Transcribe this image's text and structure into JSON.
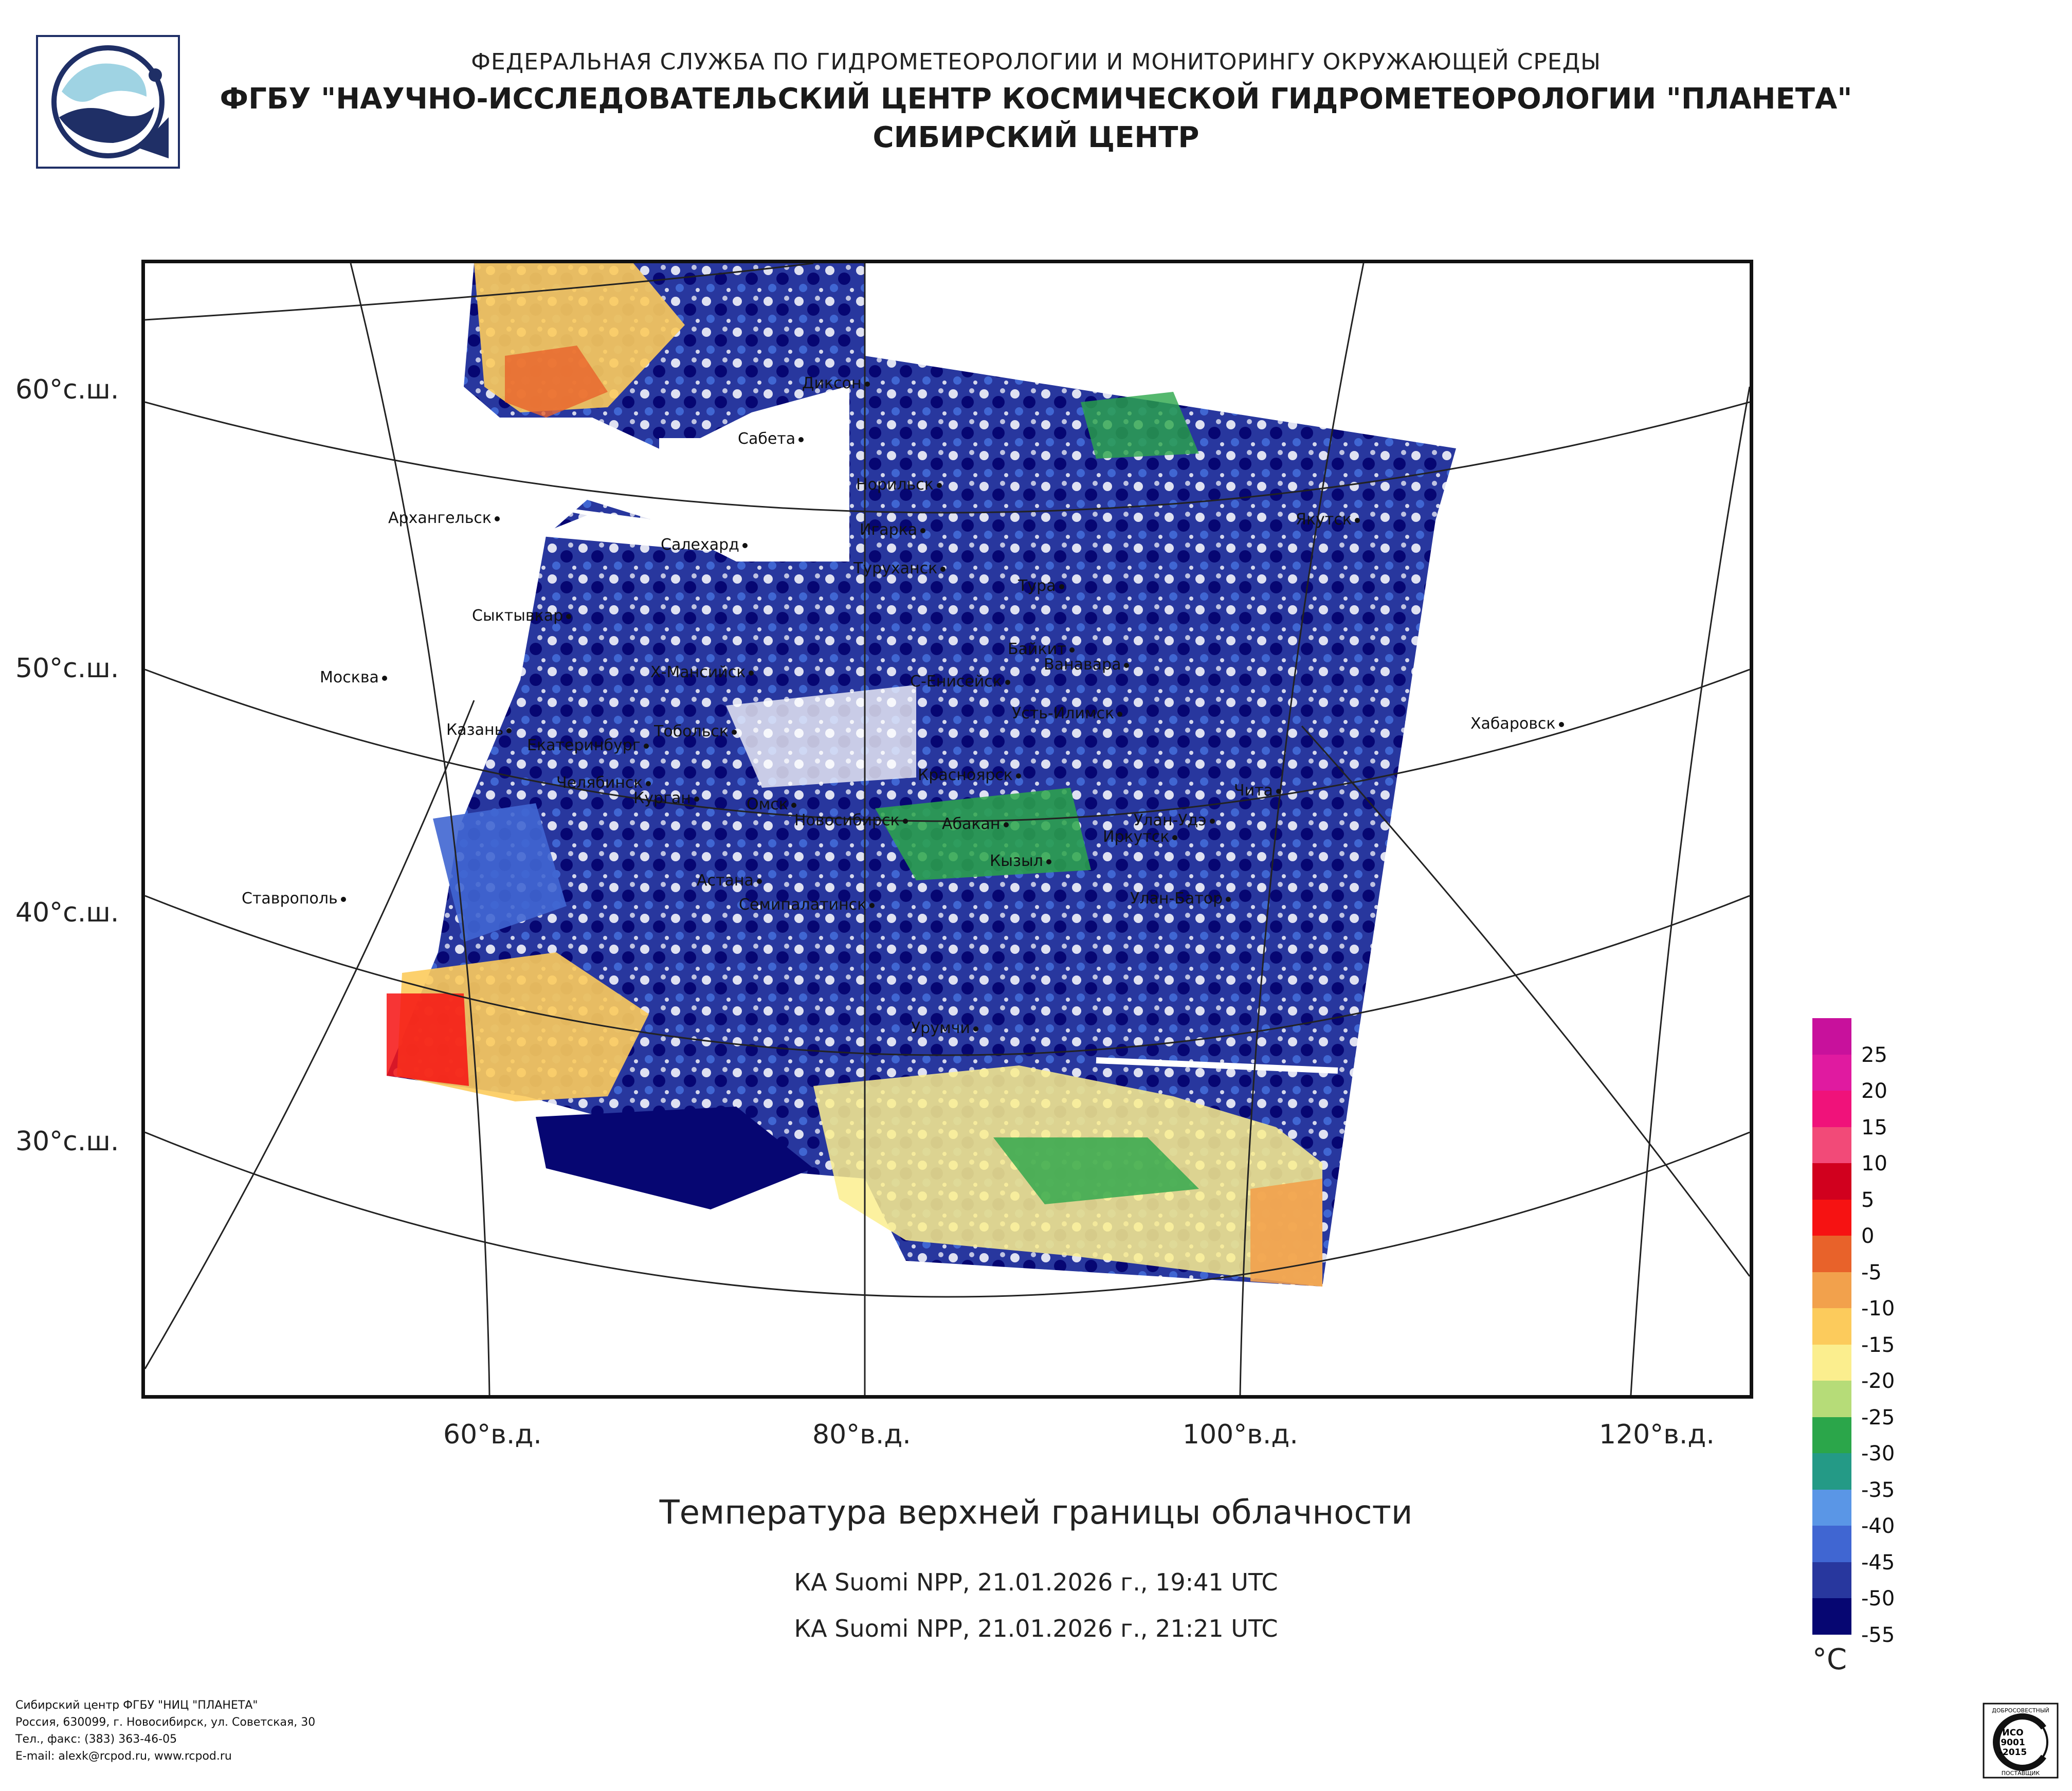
{
  "header": {
    "line1": "ФЕДЕРАЛЬНАЯ СЛУЖБА ПО ГИДРОМЕТЕОРОЛОГИИ И МОНИТОРИНГУ ОКРУЖАЮЩЕЙ СРЕДЫ",
    "line2": "ФГБУ \"НАУЧНО-ИССЛЕДОВАТЕЛЬСКИЙ ЦЕНТР КОСМИЧЕСКОЙ ГИДРОМЕТЕОРОЛОГИИ \"ПЛАНЕТА\"",
    "line3": "СИБИРСКИЙ ЦЕНТР"
  },
  "axes": {
    "latitudes": [
      {
        "label": "60°с.ш."
      },
      {
        "label": "50°с.ш."
      },
      {
        "label": "40°с.ш."
      },
      {
        "label": "30°с.ш."
      }
    ],
    "longitudes": [
      {
        "label": "60°в.д."
      },
      {
        "label": "80°в.д."
      },
      {
        "label": "100°в.д."
      },
      {
        "label": "120°в.д."
      }
    ]
  },
  "cities": [
    {
      "name": "Диксон"
    },
    {
      "name": "Сабета"
    },
    {
      "name": "Норильск"
    },
    {
      "name": "Игарка"
    },
    {
      "name": "Архангельск"
    },
    {
      "name": "Салехард"
    },
    {
      "name": "Туруханск"
    },
    {
      "name": "Якутск"
    },
    {
      "name": "Тура"
    },
    {
      "name": "Сыктывкар"
    },
    {
      "name": "Байкит"
    },
    {
      "name": "Ванавара"
    },
    {
      "name": "Москва"
    },
    {
      "name": "Х-Мансийск"
    },
    {
      "name": "С-Енисейск"
    },
    {
      "name": "Усть-Илимск"
    },
    {
      "name": "Хабаровск"
    },
    {
      "name": "Казань"
    },
    {
      "name": "Тобольск"
    },
    {
      "name": "Екатеринбург"
    },
    {
      "name": "Красноярск"
    },
    {
      "name": "Челябинск"
    },
    {
      "name": "Чита"
    },
    {
      "name": "Курган"
    },
    {
      "name": "Омск"
    },
    {
      "name": "Новосибирск"
    },
    {
      "name": "Улан-Удэ"
    },
    {
      "name": "Абакан"
    },
    {
      "name": "Иркутск"
    },
    {
      "name": "Кызыл"
    },
    {
      "name": "Астана"
    },
    {
      "name": "Ставрополь"
    },
    {
      "name": "Семипалатинск"
    },
    {
      "name": "Улан-Батор"
    },
    {
      "name": "Урумчи"
    }
  ],
  "title": "Температура верхней границы облачности",
  "passes": [
    "КА Suomi NPP, 21.01.2026 г., 19:41 UTC",
    "КА Suomi NPP, 21.01.2026 г., 21:21 UTC"
  ],
  "legend": {
    "unit": "°C",
    "labels": [
      "25",
      "20",
      "15",
      "10",
      "5",
      "0",
      "-5",
      "-10",
      "-15",
      "-20",
      "-25",
      "-30",
      "-35",
      "-40",
      "-45",
      "-50",
      "-55"
    ],
    "colors": [
      "#c8119c",
      "#e01aa0",
      "#f0127a",
      "#f24a78",
      "#d1001e",
      "#f61212",
      "#e8622a",
      "#f2a14c",
      "#fccb5c",
      "#fbee8e",
      "#b6dc78",
      "#2ba64a",
      "#249a86",
      "#5a96e6",
      "#4066d2",
      "#28379e",
      "#060672"
    ]
  },
  "footer": {
    "line1": "Сибирский центр ФГБУ \"НИЦ \"ПЛАНЕТА\"",
    "line2": "Россия, 630099, г. Новосибирск, ул. Советская, 30",
    "line3": "Тел., факс: (383) 363-46-05",
    "line4": "E-mail: alexk@rcpod.ru, www.rcpod.ru"
  },
  "iso_badge": {
    "top": "ДОБРОСОВЕСТНЫЙ",
    "line1": "ИСО",
    "line2": "9001",
    "line3": "-2015",
    "bottom": "ПОСТАВЩИК"
  }
}
